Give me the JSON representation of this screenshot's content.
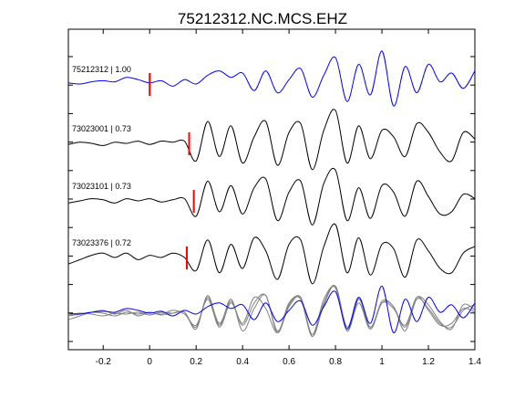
{
  "chart_data": {
    "type": "line",
    "title": "75212312.NC.MCS.EHZ",
    "xlabel": "",
    "ylabel": "",
    "xlim": [
      -0.35,
      1.4
    ],
    "x_ticks": [
      "-0.2",
      "0",
      "0.2",
      "0.4",
      "0.6",
      "0.8",
      "1",
      "1.2",
      "1.4"
    ],
    "x_tick_values": [
      -0.2,
      0,
      0.2,
      0.4,
      0.6,
      0.8,
      1.0,
      1.2,
      1.4
    ],
    "grid": false,
    "legend": "none",
    "colors": {
      "master": "#0000ff",
      "correlated": "#000000",
      "overlay": "#808080",
      "pick": "#ff0000"
    },
    "series": [
      {
        "label": "75212312 | 1.00",
        "color": "#0000ff",
        "pick_time": 0.0,
        "x": [
          -0.35,
          -0.3,
          -0.25,
          -0.2,
          -0.15,
          -0.1,
          -0.05,
          0.0,
          0.05,
          0.1,
          0.15,
          0.2,
          0.25,
          0.3,
          0.35,
          0.4,
          0.45,
          0.5,
          0.55,
          0.6,
          0.65,
          0.7,
          0.75,
          0.8,
          0.85,
          0.9,
          0.95,
          1.0,
          1.05,
          1.1,
          1.15,
          1.2,
          1.25,
          1.3,
          1.35,
          1.4
        ],
        "values": [
          0.05,
          0.0,
          0.1,
          0.15,
          0.1,
          0.3,
          0.2,
          0.05,
          0.15,
          -0.1,
          0.2,
          0.0,
          0.4,
          0.6,
          0.3,
          0.5,
          -0.3,
          0.6,
          -0.4,
          0.2,
          0.7,
          -0.6,
          0.4,
          1.2,
          -0.8,
          0.9,
          -0.5,
          1.5,
          -1.0,
          0.8,
          -0.4,
          0.9,
          0.1,
          0.5,
          -0.2,
          0.6
        ]
      },
      {
        "label": "73023001 | 0.73",
        "color": "#000000",
        "pick_time": 0.17,
        "x": [
          -0.35,
          -0.3,
          -0.25,
          -0.2,
          -0.15,
          -0.1,
          -0.05,
          0.0,
          0.05,
          0.1,
          0.15,
          0.2,
          0.25,
          0.3,
          0.35,
          0.4,
          0.45,
          0.5,
          0.55,
          0.6,
          0.65,
          0.7,
          0.75,
          0.8,
          0.85,
          0.9,
          0.95,
          1.0,
          1.05,
          1.1,
          1.15,
          1.2,
          1.25,
          1.3,
          1.35,
          1.4
        ],
        "values": [
          -0.05,
          0.05,
          0.0,
          -0.1,
          0.05,
          0.0,
          0.1,
          -0.05,
          0.1,
          0.05,
          0.1,
          -0.8,
          1.0,
          -0.6,
          0.8,
          -0.9,
          0.3,
          1.0,
          -1.0,
          0.5,
          0.9,
          -1.2,
          0.6,
          1.5,
          -0.9,
          0.8,
          -0.7,
          0.6,
          0.3,
          -0.6,
          0.9,
          0.5,
          -0.4,
          -0.8,
          0.5,
          0.2
        ]
      },
      {
        "label": "73023101 | 0.73",
        "color": "#000000",
        "pick_time": 0.19,
        "x": [
          -0.35,
          -0.3,
          -0.25,
          -0.2,
          -0.15,
          -0.1,
          -0.05,
          0.0,
          0.05,
          0.1,
          0.15,
          0.2,
          0.25,
          0.3,
          0.35,
          0.4,
          0.45,
          0.5,
          0.55,
          0.6,
          0.65,
          0.7,
          0.75,
          0.8,
          0.85,
          0.9,
          0.95,
          1.0,
          1.05,
          1.1,
          1.15,
          1.2,
          1.25,
          1.3,
          1.35,
          1.4
        ],
        "values": [
          -0.1,
          0.0,
          0.1,
          0.05,
          -0.1,
          0.1,
          0.0,
          0.1,
          -0.05,
          0.05,
          0.1,
          -0.7,
          0.9,
          -0.5,
          0.7,
          -0.6,
          0.6,
          1.0,
          -0.9,
          0.4,
          0.9,
          -1.1,
          0.8,
          1.4,
          -0.9,
          0.6,
          -0.8,
          0.7,
          0.4,
          -0.7,
          0.9,
          0.2,
          -0.6,
          -0.5,
          0.3,
          0.1
        ]
      },
      {
        "label": "73023376 | 0.72",
        "color": "#000000",
        "pick_time": 0.16,
        "x": [
          -0.35,
          -0.3,
          -0.25,
          -0.2,
          -0.15,
          -0.1,
          -0.05,
          0.0,
          0.05,
          0.1,
          0.15,
          0.2,
          0.25,
          0.3,
          0.35,
          0.4,
          0.45,
          0.5,
          0.55,
          0.6,
          0.65,
          0.7,
          0.75,
          0.8,
          0.85,
          0.9,
          0.95,
          1.0,
          1.05,
          1.1,
          1.15,
          1.2,
          1.25,
          1.3,
          1.35,
          1.4
        ],
        "values": [
          -0.3,
          -0.1,
          0.1,
          0.2,
          0.0,
          0.2,
          -0.1,
          0.1,
          0.0,
          0.2,
          0.0,
          -0.6,
          0.8,
          -0.7,
          0.6,
          -0.5,
          0.9,
          0.3,
          -1.0,
          0.6,
          0.8,
          -1.2,
          0.5,
          1.5,
          -0.7,
          0.9,
          -0.8,
          0.6,
          0.4,
          -0.9,
          0.8,
          0.3,
          -0.5,
          -0.7,
          0.2,
          0.5
        ]
      }
    ]
  }
}
